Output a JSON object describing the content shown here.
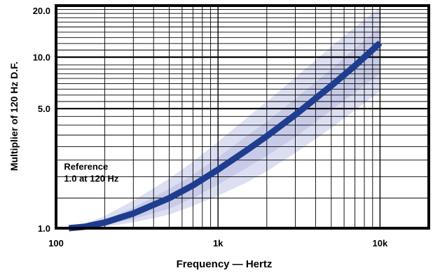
{
  "chart_data": {
    "type": "line",
    "title": "",
    "xlabel": "Frequency — Hertz",
    "ylabel": "Multiplier of 120 Hz D.F.",
    "x_scale": "log",
    "y_scale": "log",
    "xlim": [
      100,
      20000
    ],
    "ylim": [
      1.0,
      20.0
    ],
    "grid": true,
    "x_tick_labels": [
      {
        "value": 100,
        "label": "100"
      },
      {
        "value": 1000,
        "label": "1k"
      },
      {
        "value": 10000,
        "label": "10k"
      }
    ],
    "y_tick_labels": [
      {
        "value": 1.0,
        "label": "1.0"
      },
      {
        "value": 5.0,
        "label": "5.0"
      },
      {
        "value": 10.0,
        "label": "10.0"
      },
      {
        "value": 20.0,
        "label": "20.0"
      }
    ],
    "annotation": {
      "lines": [
        "Reference",
        "1.0 at 120 Hz"
      ],
      "x": 112,
      "y": 2.2
    },
    "series": [
      {
        "x": [
          120,
          150,
          200,
          300,
          500,
          700,
          1000,
          1500,
          2000,
          3000,
          5000,
          7000,
          10000
        ],
        "values": [
          1.0,
          1.02,
          1.08,
          1.22,
          1.5,
          1.78,
          2.2,
          2.85,
          3.45,
          4.6,
          6.8,
          8.9,
          12.1
        ],
        "color": "#1e3d8f"
      }
    ],
    "band": {
      "x": [
        120,
        150,
        200,
        300,
        500,
        700,
        1000,
        1500,
        2000,
        3000,
        5000,
        7000,
        10000
      ],
      "upper": [
        1.0,
        1.06,
        1.18,
        1.45,
        1.95,
        2.45,
        3.2,
        4.4,
        5.5,
        7.6,
        11.5,
        15.0,
        19.5
      ],
      "lower": [
        1.0,
        1.0,
        1.02,
        1.08,
        1.2,
        1.35,
        1.55,
        1.85,
        2.15,
        2.75,
        3.85,
        4.9,
        6.3
      ],
      "color": "#dcdff2"
    },
    "inner_band": {
      "x": [
        120,
        150,
        200,
        300,
        500,
        700,
        1000,
        1500,
        2000,
        3000,
        5000,
        7000,
        10000
      ],
      "upper": [
        1.0,
        1.04,
        1.12,
        1.32,
        1.7,
        2.05,
        2.6,
        3.45,
        4.2,
        5.7,
        8.5,
        11.2,
        15.0
      ],
      "lower": [
        1.0,
        1.0,
        1.04,
        1.13,
        1.3,
        1.5,
        1.8,
        2.25,
        2.65,
        3.4,
        4.9,
        6.2,
        8.0
      ],
      "color": "#c7cbe8"
    }
  }
}
